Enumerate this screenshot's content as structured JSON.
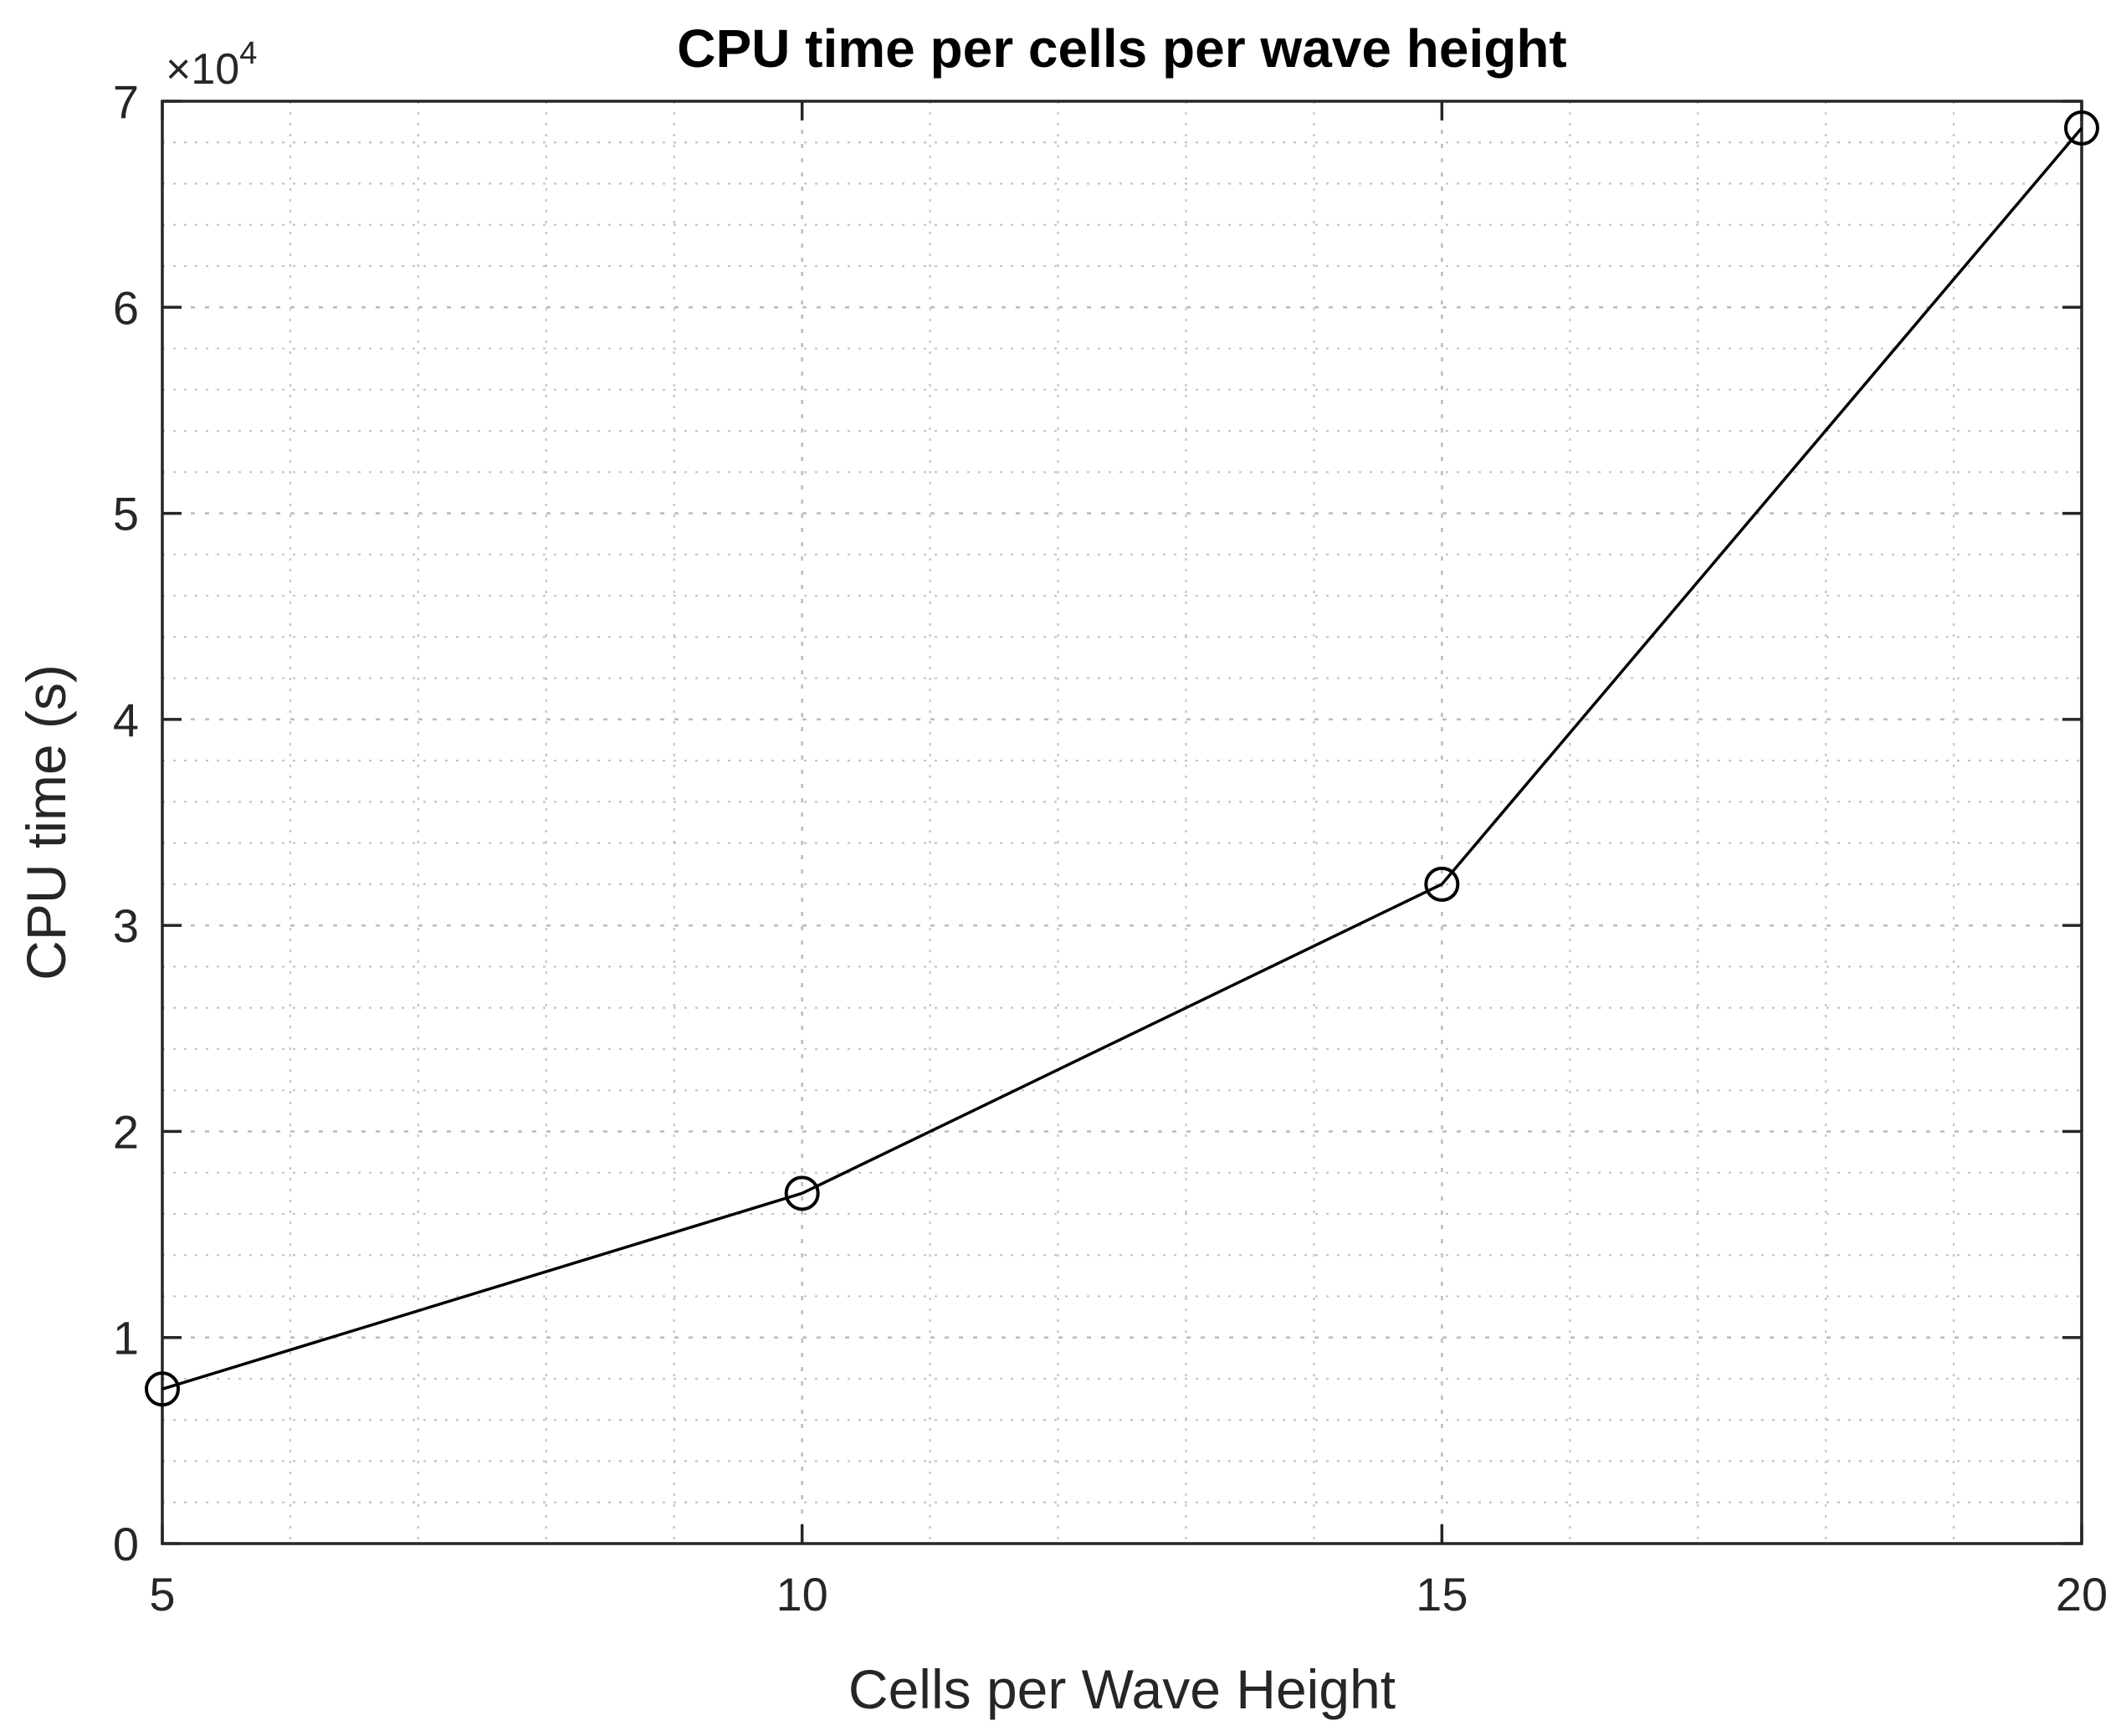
{
  "chart_data": {
    "type": "line",
    "title": "CPU time per cells per wave height",
    "xlabel": "Cells per Wave Height",
    "ylabel": "CPU time (s)",
    "y_multiplier": {
      "prefix": "×10",
      "exponent": "4"
    },
    "xlim": [
      5,
      20
    ],
    "ylim": [
      0,
      70000
    ],
    "x_ticks": [
      5,
      10,
      15,
      20
    ],
    "x_tick_labels": [
      "5",
      "10",
      "15",
      "20"
    ],
    "y_ticks": [
      0,
      10000,
      20000,
      30000,
      40000,
      50000,
      60000,
      70000
    ],
    "y_tick_labels": [
      "0",
      "1",
      "2",
      "3",
      "4",
      "5",
      "6",
      "7"
    ],
    "grid": true,
    "minor_grid": true,
    "x_minor_step": 1,
    "y_minor_step": 2000,
    "series": [
      {
        "name": "CPU time",
        "marker": "circle",
        "color": "#000000",
        "x": [
          5,
          10,
          15,
          20
        ],
        "values": [
          7500,
          17000,
          32000,
          68700
        ]
      }
    ]
  }
}
